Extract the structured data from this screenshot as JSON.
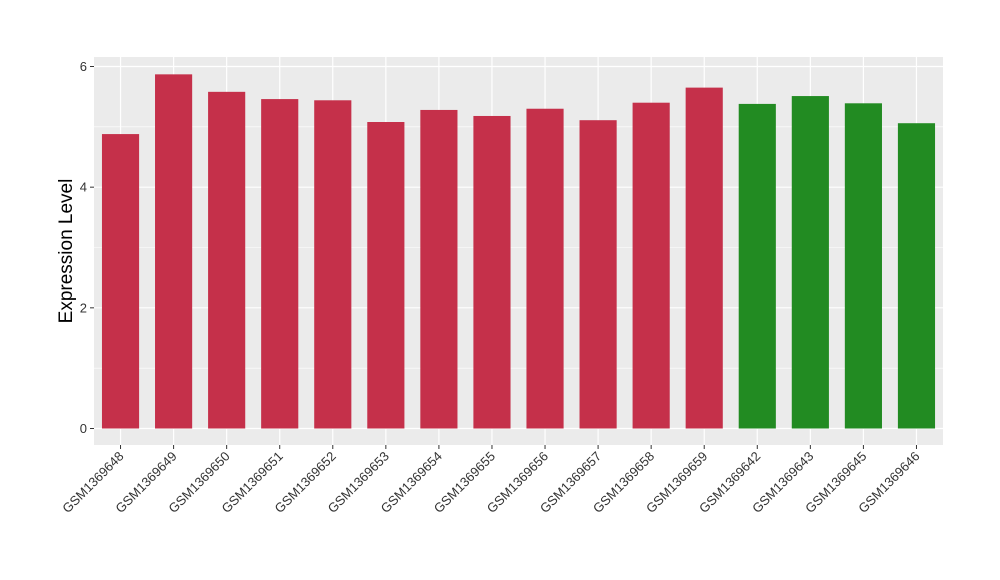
{
  "chart_data": {
    "type": "bar",
    "ylabel": "Expression Level",
    "xlabel": "",
    "ylim": [
      -0.3,
      6.15
    ],
    "yticks": [
      0,
      2,
      4,
      6
    ],
    "yticks_labels": [
      "0",
      "2",
      "4",
      "6"
    ],
    "grid": true,
    "background": "#EBEBEB",
    "gridline_color": "#FFFFFF",
    "categories": [
      "GSM1369648",
      "GSM1369649",
      "GSM1369650",
      "GSM1369651",
      "GSM1369652",
      "GSM1369653",
      "GSM1369654",
      "GSM1369655",
      "GSM1369656",
      "GSM1369657",
      "GSM1369658",
      "GSM1369659",
      "GSM1369642",
      "GSM1369643",
      "GSM1369645",
      "GSM1369646"
    ],
    "values": [
      4.88,
      5.87,
      5.58,
      5.46,
      5.44,
      5.08,
      5.28,
      5.18,
      5.3,
      5.11,
      5.4,
      5.65,
      5.38,
      5.51,
      5.39,
      5.06
    ],
    "colors": [
      "#C5304A",
      "#C5304A",
      "#C5304A",
      "#C5304A",
      "#C5304A",
      "#C5304A",
      "#C5304A",
      "#C5304A",
      "#C5304A",
      "#C5304A",
      "#C5304A",
      "#C5304A",
      "#228B22",
      "#228B22",
      "#228B22",
      "#228B22"
    ]
  }
}
